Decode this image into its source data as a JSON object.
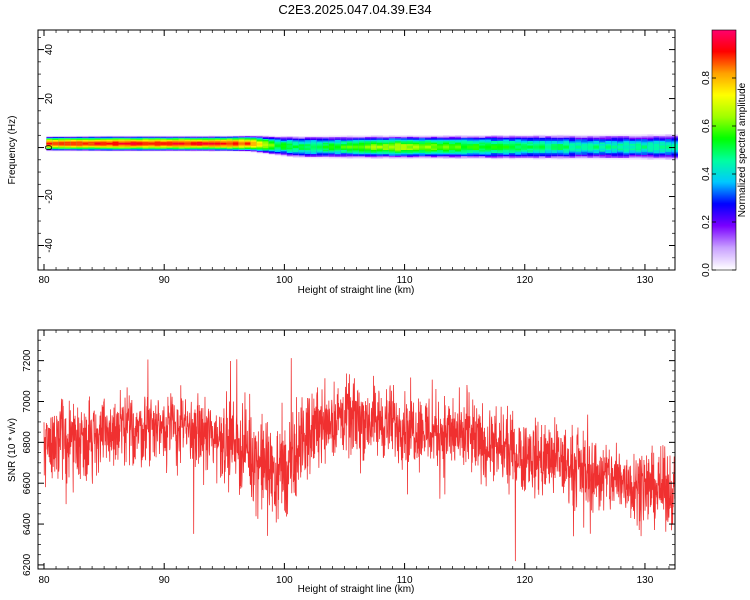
{
  "title": "C2E3.2025.047.04.39.E34",
  "chart_data": [
    {
      "type": "heatmap",
      "xlabel": "Height of straight line (km)",
      "ylabel": "Frequency (Hz)",
      "xlim": [
        79.5,
        132.5
      ],
      "ylim": [
        -50,
        48
      ],
      "xticks": [
        80,
        90,
        100,
        110,
        120,
        130
      ],
      "xtick_labels": [
        "80",
        "90",
        "100",
        "110",
        "120",
        "130"
      ],
      "yticks": [
        40,
        20,
        0,
        -20,
        -40
      ],
      "ytick_labels": [
        "40",
        "20",
        "0",
        "-20",
        "-40"
      ],
      "band": [
        {
          "x": 80,
          "center": 1.6,
          "halfwidth": 2.5,
          "peak": 0.88
        },
        {
          "x": 85,
          "center": 1.6,
          "halfwidth": 2.6,
          "peak": 0.9
        },
        {
          "x": 90,
          "center": 1.6,
          "halfwidth": 2.6,
          "peak": 0.9
        },
        {
          "x": 95,
          "center": 1.6,
          "halfwidth": 2.6,
          "peak": 0.9
        },
        {
          "x": 97,
          "center": 1.6,
          "halfwidth": 2.8,
          "peak": 0.85
        },
        {
          "x": 99,
          "center": 0.8,
          "halfwidth": 3.2,
          "peak": 0.55
        },
        {
          "x": 101,
          "center": 0.2,
          "halfwidth": 3.6,
          "peak": 0.5
        },
        {
          "x": 105,
          "center": 0.2,
          "halfwidth": 3.8,
          "peak": 0.55
        },
        {
          "x": 109,
          "center": 0.2,
          "halfwidth": 3.8,
          "peak": 0.65
        },
        {
          "x": 115,
          "center": 0.2,
          "halfwidth": 3.9,
          "peak": 0.55
        },
        {
          "x": 120,
          "center": 0.2,
          "halfwidth": 4.0,
          "peak": 0.5
        },
        {
          "x": 125,
          "center": 0.2,
          "halfwidth": 4.0,
          "peak": 0.45
        },
        {
          "x": 132.5,
          "center": 0.2,
          "halfwidth": 4.2,
          "peak": 0.45
        }
      ],
      "colorbar": {
        "label": "Normalized spectral amplitude",
        "range": [
          0,
          1
        ],
        "ticks": [
          0.0,
          0.2,
          0.4,
          0.6,
          0.8
        ],
        "tick_labels": [
          "0.0",
          "0.2",
          "0.4",
          "0.6",
          "0.8"
        ],
        "colors": [
          "#ffffff",
          "#c8a0ff",
          "#7a00ff",
          "#0000ff",
          "#00c8ff",
          "#00ffa0",
          "#00ff00",
          "#a0ff00",
          "#ffff00",
          "#ffa000",
          "#ff0000",
          "#ff0070"
        ]
      }
    },
    {
      "type": "line",
      "xlabel": "Height of straight line (km)",
      "ylabel": "SNR (10 * v/v)",
      "xlim": [
        79.5,
        132.5
      ],
      "ylim": [
        6180,
        7350
      ],
      "xticks": [
        80,
        90,
        100,
        110,
        120,
        130
      ],
      "xtick_labels": [
        "80",
        "90",
        "100",
        "110",
        "120",
        "130"
      ],
      "yticks": [
        6200,
        6400,
        6600,
        6800,
        7000,
        7200
      ],
      "ytick_labels": [
        "6200",
        "6400",
        "6600",
        "6800",
        "7000",
        "7200"
      ],
      "series": [
        {
          "color": "#f03030",
          "envelope": {
            "x": [
              80,
              84,
              87,
              90,
              93,
              96,
              98,
              99.5,
              100.5,
              101.5,
              103,
              105,
              108,
              111,
              114,
              117,
              120,
              123,
              126,
              129,
              132.5
            ],
            "mean": [
              6800,
              6820,
              6860,
              6880,
              6840,
              6800,
              6700,
              6640,
              6660,
              6800,
              6900,
              6920,
              6900,
              6870,
              6840,
              6780,
              6740,
              6700,
              6640,
              6600,
              6560
            ],
            "spread": [
              160,
              160,
              150,
              150,
              150,
              170,
              190,
              200,
              210,
              170,
              160,
              150,
              150,
              150,
              150,
              150,
              150,
              150,
              150,
              150,
              150
            ]
          }
        }
      ]
    }
  ]
}
